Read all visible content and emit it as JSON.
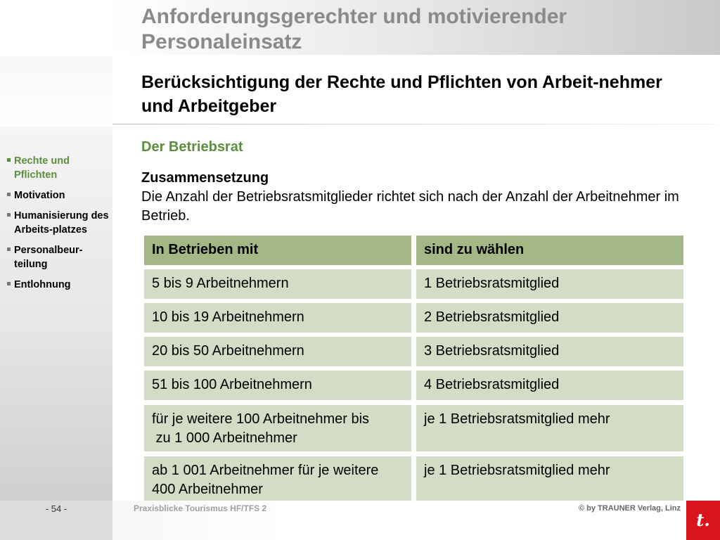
{
  "header": {
    "title": "Anforderungsgerechter und motivierender Personaleinsatz"
  },
  "sidebar": {
    "items": [
      {
        "label": "Rechte und Pflichten",
        "active": true
      },
      {
        "label": "Motivation",
        "active": false
      },
      {
        "label": "Humanisierung des Arbeits-platzes",
        "active": false
      },
      {
        "label": "Personalbeur-teilung",
        "active": false
      },
      {
        "label": "Entlohnung",
        "active": false
      }
    ]
  },
  "main": {
    "subtitle": "Berücksichtigung der Rechte und Pflichten von Arbeit-nehmer und Arbeitgeber",
    "section_heading": "Der Betriebsrat",
    "intro_label": "Zusammensetzung",
    "intro_text": "Die Anzahl der Betriebsratsmitglieder richtet sich nach der Anzahl der Arbeitnehmer im Betrieb.",
    "table": {
      "headers": [
        "In Betrieben mit",
        "sind zu wählen"
      ],
      "rows": [
        [
          "5 bis 9 Arbeitnehmern",
          "1 Betriebsratsmitglied"
        ],
        [
          "10 bis 19 Arbeitnehmern",
          "2 Betriebsratsmitglied"
        ],
        [
          "20 bis 50 Arbeitnehmern",
          "3 Betriebsratsmitglied"
        ],
        [
          "51 bis 100 Arbeitnehmern",
          "4 Betriebsratsmitglied"
        ],
        [
          "für je weitere 100 Arbeitnehmer bis\n zu 1 000 Arbeitnehmer",
          "je 1 Betriebsratsmitglied mehr"
        ],
        [
          "ab 1 001 Arbeitnehmer für je weitere\n400 Arbeitnehmer",
          "je 1 Betriebsratsmitglied mehr"
        ]
      ]
    }
  },
  "footer": {
    "page": "- 54 -",
    "book": "Praxisblicke Tourismus HF/TFS 2",
    "copyright": "© by TRAUNER Verlag, Linz",
    "logo_text": "t."
  },
  "colors": {
    "accent_green": "#5b8f3c",
    "table_header": "#a3b884",
    "table_cell": "#d3ddc5",
    "logo_red": "#d9141c"
  }
}
